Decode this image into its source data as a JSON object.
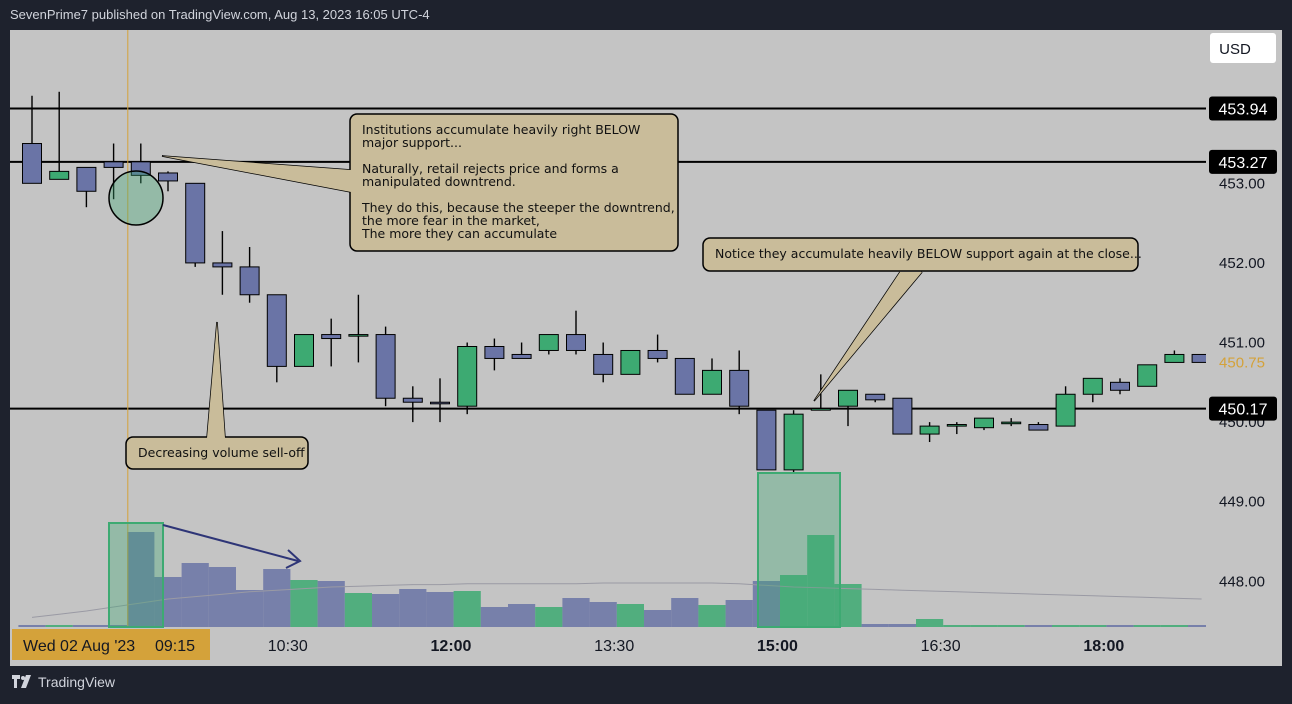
{
  "header": {
    "publisher_line": "SevenPrime7 published on TradingView.com, Aug 13, 2023 16:05 UTC-4"
  },
  "footer": {
    "brand": "TradingView"
  },
  "currency": "USD",
  "colors": {
    "background": "#c4c4c4",
    "bear": "#6a74a6",
    "bull": "#3daa72",
    "line": "#000000",
    "callout_fill": "#c9bc9a",
    "crosshair": "#d4a23a",
    "price_current": "#d4a23a"
  },
  "chart_data": {
    "type": "candlestick",
    "ylim": [
      447.3,
      454.7
    ],
    "y_ticks": [
      448.0,
      449.0,
      450.0,
      451.0,
      452.0,
      453.0
    ],
    "y_tick_labels": [
      "448.00",
      "449.00",
      "450.00",
      "451.00",
      "452.00",
      "453.00"
    ],
    "x_tick_labels": [
      {
        "label": "09:15",
        "bar": 4
      },
      {
        "label": "10:30",
        "bar": 9
      },
      {
        "label": "12:00",
        "bar": 15
      },
      {
        "label": "13:30",
        "bar": 21
      },
      {
        "label": "15:00",
        "bar": 27
      },
      {
        "label": "16:30",
        "bar": 33
      },
      {
        "label": "18:00",
        "bar": 39
      }
    ],
    "bold_x_ticks": [
      "12:00",
      "15:00",
      "18:00"
    ],
    "crosshair_label": "Wed 02 Aug '23",
    "crosshair_bar": 4,
    "horizontal_levels": [
      {
        "value": 453.94,
        "label": "453.94"
      },
      {
        "value": 453.27,
        "label": "453.27"
      },
      {
        "value": 450.17,
        "label": "450.17"
      }
    ],
    "last_price": {
      "value": 450.75,
      "label": "450.75"
    },
    "candles": [
      {
        "o": 453.5,
        "h": 454.1,
        "c": 453.0,
        "l": 453.0
      },
      {
        "o": 453.05,
        "h": 454.15,
        "c": 453.15,
        "l": 453.05
      },
      {
        "o": 453.2,
        "h": 453.2,
        "c": 452.9,
        "l": 452.7
      },
      {
        "o": 453.27,
        "h": 453.5,
        "c": 453.2,
        "l": 452.8
      },
      {
        "o": 453.27,
        "h": 453.5,
        "c": 453.1,
        "l": 453.0
      },
      {
        "o": 453.13,
        "h": 453.15,
        "c": 453.03,
        "l": 452.9
      },
      {
        "o": 453.0,
        "h": 453.0,
        "c": 452.0,
        "l": 451.95
      },
      {
        "o": 452.0,
        "h": 452.4,
        "c": 451.95,
        "l": 451.6
      },
      {
        "o": 451.95,
        "h": 452.2,
        "c": 451.6,
        "l": 451.5
      },
      {
        "o": 451.6,
        "h": 451.6,
        "c": 450.7,
        "l": 450.5
      },
      {
        "o": 450.7,
        "h": 451.1,
        "c": 451.1,
        "l": 450.7
      },
      {
        "o": 451.1,
        "h": 451.3,
        "c": 451.05,
        "l": 450.7
      },
      {
        "o": 451.1,
        "h": 451.6,
        "c": 451.1,
        "l": 450.75
      },
      {
        "o": 451.1,
        "h": 451.2,
        "c": 450.3,
        "l": 450.2
      },
      {
        "o": 450.3,
        "h": 450.45,
        "c": 450.25,
        "l": 450.0
      },
      {
        "o": 450.25,
        "h": 450.55,
        "c": 450.23,
        "l": 450.0
      },
      {
        "o": 450.2,
        "h": 451.0,
        "c": 450.95,
        "l": 450.1
      },
      {
        "o": 450.95,
        "h": 451.05,
        "c": 450.8,
        "l": 450.65
      },
      {
        "o": 450.85,
        "h": 451.0,
        "c": 450.8,
        "l": 450.8
      },
      {
        "o": 450.9,
        "h": 451.1,
        "c": 451.1,
        "l": 450.85
      },
      {
        "o": 451.1,
        "h": 451.4,
        "c": 450.9,
        "l": 450.85
      },
      {
        "o": 450.85,
        "h": 451.0,
        "c": 450.6,
        "l": 450.5
      },
      {
        "o": 450.6,
        "h": 450.9,
        "c": 450.9,
        "l": 450.6
      },
      {
        "o": 450.9,
        "h": 451.1,
        "c": 450.8,
        "l": 450.75
      },
      {
        "o": 450.8,
        "h": 450.8,
        "c": 450.35,
        "l": 450.35
      },
      {
        "o": 450.35,
        "h": 450.8,
        "c": 450.65,
        "l": 450.35
      },
      {
        "o": 450.65,
        "h": 450.9,
        "c": 450.2,
        "l": 450.1
      },
      {
        "o": 450.15,
        "h": 450.15,
        "c": 449.4,
        "l": 449.4
      },
      {
        "o": 449.4,
        "h": 450.15,
        "c": 450.1,
        "l": 449.35
      },
      {
        "o": 450.15,
        "h": 450.6,
        "c": 450.17,
        "l": 450.17
      },
      {
        "o": 450.2,
        "h": 450.4,
        "c": 450.4,
        "l": 449.95
      },
      {
        "o": 450.35,
        "h": 450.35,
        "c": 450.28,
        "l": 450.25
      },
      {
        "o": 450.3,
        "h": 450.3,
        "c": 449.85,
        "l": 449.85
      },
      {
        "o": 449.85,
        "h": 450.0,
        "c": 449.95,
        "l": 449.75
      },
      {
        "o": 449.95,
        "h": 450.0,
        "c": 449.97,
        "l": 449.85
      },
      {
        "o": 449.93,
        "h": 450.05,
        "c": 450.05,
        "l": 449.9
      },
      {
        "o": 450.0,
        "h": 450.05,
        "c": 450.0,
        "l": 449.95
      },
      {
        "o": 449.97,
        "h": 450.0,
        "c": 449.9,
        "l": 449.9
      },
      {
        "o": 449.95,
        "h": 450.45,
        "c": 450.35,
        "l": 449.95
      },
      {
        "o": 450.35,
        "h": 450.55,
        "c": 450.55,
        "l": 450.25
      },
      {
        "o": 450.5,
        "h": 450.55,
        "c": 450.4,
        "l": 450.35
      },
      {
        "o": 450.45,
        "h": 450.72,
        "c": 450.72,
        "l": 450.45
      },
      {
        "o": 450.75,
        "h": 450.9,
        "c": 450.85,
        "l": 450.75
      },
      {
        "o": 450.85,
        "h": 450.85,
        "c": 450.75,
        "l": 450.75
      }
    ],
    "volume": [
      2,
      2,
      2,
      2,
      95,
      50,
      64,
      60,
      37,
      58,
      47,
      46,
      34,
      33,
      38,
      35,
      36,
      20,
      23,
      20,
      29,
      25,
      23,
      17,
      29,
      22,
      27,
      46,
      52,
      92,
      43,
      3,
      3,
      8,
      2,
      2,
      2,
      2,
      2,
      2,
      2,
      2,
      2,
      2
    ],
    "volume_ma": [
      12,
      16,
      20,
      25,
      30,
      35,
      38,
      41,
      44,
      46,
      48,
      50,
      51,
      52,
      53,
      53,
      54,
      54,
      54,
      54,
      54,
      55,
      55,
      55,
      55,
      55,
      54,
      52,
      50,
      49,
      48,
      47,
      46,
      45,
      44,
      43,
      42,
      41,
      40,
      39,
      38,
      37,
      36,
      35
    ],
    "annotations": [
      {
        "id": "callout-institutions",
        "lines": [
          "Institutions accumulate heavily right BELOW",
          "major support...",
          "",
          "Naturally, retail rejects price and forms a",
          "manipulated downtrend.",
          "",
          "They do this, because the steeper the downtrend,",
          "the more fear in the market,",
          "The more they can accumulate"
        ]
      },
      {
        "id": "callout-close",
        "lines": [
          "Notice they accumulate heavily BELOW support again at the close..."
        ]
      },
      {
        "id": "callout-volume",
        "lines": [
          "Decreasing volume sell-off"
        ]
      }
    ]
  }
}
